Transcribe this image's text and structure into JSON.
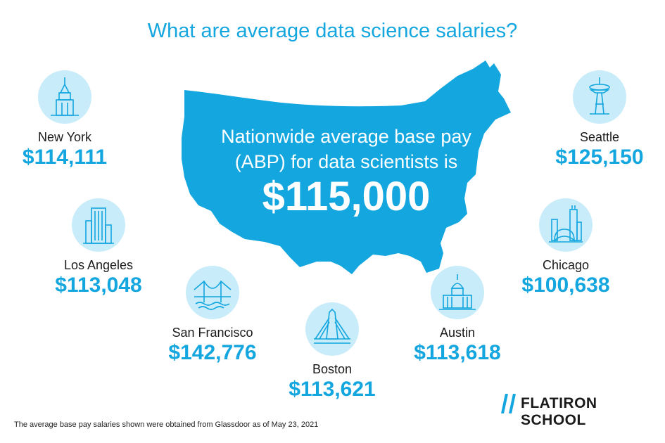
{
  "title": "What are average data science salaries?",
  "map": {
    "line1": "Nationwide average base pay",
    "line2": "(ABP) for data scientists is",
    "amount": "$115,000"
  },
  "cities": {
    "new_york": {
      "name": "New York",
      "salary": "$114,111",
      "icon": "skyscraper-icon"
    },
    "los_angeles": {
      "name": "Los Angeles",
      "salary": "$113,048",
      "icon": "office-tower-icon"
    },
    "san_francisco": {
      "name": "San Francisco",
      "salary": "$142,776",
      "icon": "bridge-icon"
    },
    "boston": {
      "name": "Boston",
      "salary": "$113,621",
      "icon": "cable-bridge-icon"
    },
    "austin": {
      "name": "Austin",
      "salary": "$113,618",
      "icon": "capitol-icon"
    },
    "chicago": {
      "name": "Chicago",
      "salary": "$100,638",
      "icon": "skyline-bean-icon"
    },
    "seattle": {
      "name": "Seattle",
      "salary": "$125,150",
      "icon": "space-needle-icon"
    }
  },
  "footnote": "The average base pay salaries shown were obtained from Glassdoor as of May 23, 2021",
  "logo": {
    "text": "FLATIRON SCHOOL",
    "icon": "double-slash-icon"
  },
  "colors": {
    "accent": "#13a6df",
    "circle": "#c9ecfa",
    "text": "#1a1a1a"
  }
}
